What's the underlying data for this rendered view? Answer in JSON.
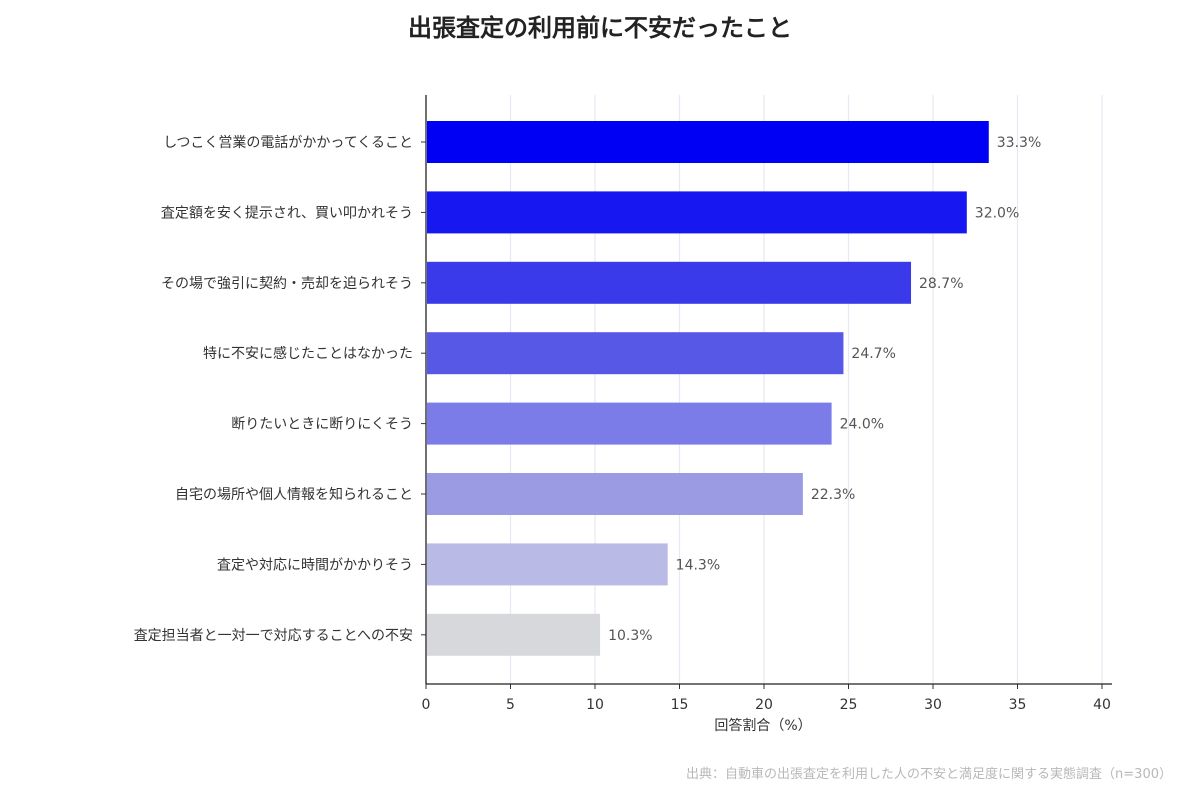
{
  "chart_data": {
    "type": "bar",
    "orientation": "horizontal",
    "title": "出張査定の利用前に不安だったこと",
    "xlabel": "回答割合（%）",
    "ylabel": "",
    "xlim": [
      0,
      40
    ],
    "xticks": [
      "0",
      "5",
      "10",
      "15",
      "20",
      "25",
      "30",
      "35",
      "40"
    ],
    "grid": "vertical",
    "categories": [
      "しつこく営業の電話がかかってくること",
      "査定額を安く提示され、買い叩かれそう",
      "その場で強引に契約・売却を迫られそう",
      "特に不安に感じたことはなかった",
      "断りたいときに断りにくそう",
      "自宅の場所や個人情報を知られること",
      "査定や対応に時間がかかりそう",
      "査定担当者と一対一で対応することへの不安"
    ],
    "values": [
      33.3,
      32.0,
      28.7,
      24.7,
      24.0,
      22.3,
      14.3,
      10.3
    ],
    "value_labels": [
      "33.3%",
      "32.0%",
      "28.7%",
      "24.7%",
      "24.0%",
      "22.3%",
      "14.3%",
      "10.3%"
    ],
    "colors": [
      "#0000f5",
      "#1717f2",
      "#3a3aea",
      "#5858e6",
      "#7c7ce8",
      "#9b9be4",
      "#babae6",
      "#d6d8dc"
    ],
    "source": "出典：自動車の出張査定を利用した人の不安と満足度に関する実態調査（n=300）"
  }
}
